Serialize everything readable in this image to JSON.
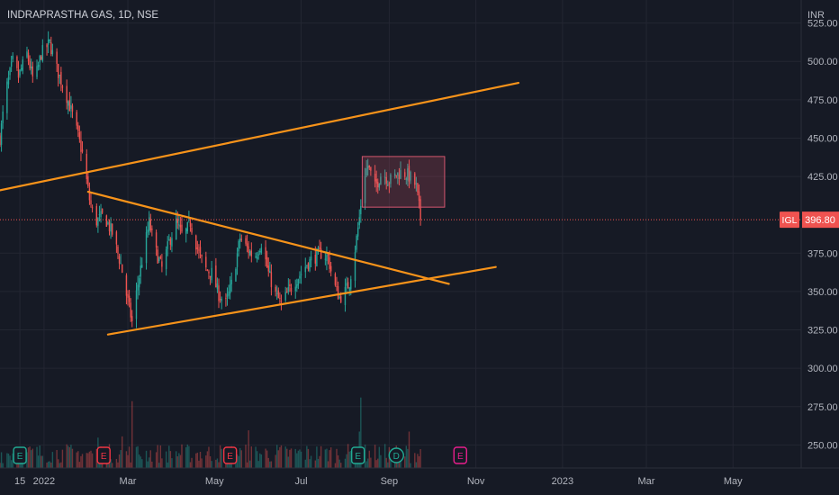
{
  "chart_data": {
    "type": "candlestick",
    "title": "INDRAPRASTHA GAS, 1D, NSE",
    "currency_label": "INR",
    "price_tag": {
      "symbol": "IGL",
      "price": "396.80",
      "value": 396.8
    },
    "colors": {
      "up": "#26a69a",
      "down": "#ef5350",
      "drawing": "#f7931a",
      "background": "#161a25",
      "grid": "#232632",
      "price_line": "#ef5350",
      "box_stroke": "#d4566e",
      "box_fill": "rgba(212,86,110,0.22)"
    },
    "y_axis": {
      "ylim": [
        235,
        540
      ],
      "ticks": [
        525,
        500,
        475,
        450,
        425,
        375,
        350,
        325,
        300,
        275,
        250
      ],
      "tick_labels": [
        "525.00",
        "500.00",
        "475.00",
        "450.00",
        "425.00",
        "375.00",
        "350.00",
        "325.00",
        "300.00",
        "275.00",
        "250.00"
      ]
    },
    "x_axis": {
      "start_date": "2021-12-01",
      "end_date": "2023-06-18",
      "ticks": [
        {
          "date": "2021-12-15",
          "label": "15"
        },
        {
          "date": "2022-01-01",
          "label": "2022"
        },
        {
          "date": "2022-03-01",
          "label": "Mar"
        },
        {
          "date": "2022-05-01",
          "label": "May"
        },
        {
          "date": "2022-07-01",
          "label": "Jul"
        },
        {
          "date": "2022-09-01",
          "label": "Sep"
        },
        {
          "date": "2022-11-01",
          "label": "Nov"
        },
        {
          "date": "2023-01-01",
          "label": "2023"
        },
        {
          "date": "2023-03-01",
          "label": "Mar"
        },
        {
          "date": "2023-05-01",
          "label": "May"
        }
      ]
    },
    "anchors": [
      [
        "2021-12-01",
        450
      ],
      [
        "2021-12-05",
        480
      ],
      [
        "2021-12-10",
        500
      ],
      [
        "2021-12-14",
        490
      ],
      [
        "2021-12-20",
        505
      ],
      [
        "2021-12-25",
        485
      ],
      [
        "2021-12-30",
        505
      ],
      [
        "2022-01-05",
        512
      ],
      [
        "2022-01-10",
        495
      ],
      [
        "2022-01-16",
        480
      ],
      [
        "2022-01-22",
        462
      ],
      [
        "2022-01-28",
        440
      ],
      [
        "2022-02-02",
        410
      ],
      [
        "2022-02-06",
        395
      ],
      [
        "2022-02-12",
        400
      ],
      [
        "2022-02-18",
        388
      ],
      [
        "2022-02-24",
        368
      ],
      [
        "2022-02-28",
        348
      ],
      [
        "2022-03-04",
        330
      ],
      [
        "2022-03-08",
        355
      ],
      [
        "2022-03-12",
        375
      ],
      [
        "2022-03-16",
        395
      ],
      [
        "2022-03-20",
        378
      ],
      [
        "2022-03-25",
        365
      ],
      [
        "2022-03-30",
        382
      ],
      [
        "2022-04-04",
        395
      ],
      [
        "2022-04-09",
        385
      ],
      [
        "2022-04-14",
        395
      ],
      [
        "2022-04-19",
        378
      ],
      [
        "2022-04-24",
        365
      ],
      [
        "2022-04-29",
        362
      ],
      [
        "2022-05-04",
        348
      ],
      [
        "2022-05-09",
        342
      ],
      [
        "2022-05-14",
        358
      ],
      [
        "2022-05-19",
        385
      ],
      [
        "2022-05-24",
        378
      ],
      [
        "2022-05-29",
        372
      ],
      [
        "2022-06-03",
        382
      ],
      [
        "2022-06-08",
        362
      ],
      [
        "2022-06-13",
        348
      ],
      [
        "2022-06-17",
        342
      ],
      [
        "2022-06-21",
        348
      ],
      [
        "2022-06-26",
        356
      ],
      [
        "2022-07-01",
        362
      ],
      [
        "2022-07-05",
        368
      ],
      [
        "2022-07-10",
        372
      ],
      [
        "2022-07-15",
        375
      ],
      [
        "2022-07-20",
        372
      ],
      [
        "2022-07-24",
        355
      ],
      [
        "2022-07-28",
        346
      ],
      [
        "2022-08-01",
        350
      ],
      [
        "2022-08-04",
        356
      ],
      [
        "2022-08-08",
        378
      ],
      [
        "2022-08-11",
        398
      ],
      [
        "2022-08-14",
        425
      ],
      [
        "2022-08-17",
        432
      ],
      [
        "2022-08-22",
        418
      ],
      [
        "2022-08-27",
        428
      ],
      [
        "2022-09-01",
        422
      ],
      [
        "2022-09-06",
        426
      ],
      [
        "2022-09-10",
        428
      ],
      [
        "2022-09-14",
        426
      ],
      [
        "2022-09-18",
        422
      ],
      [
        "2022-09-20",
        418
      ],
      [
        "2022-09-22",
        405
      ],
      [
        "2022-09-23",
        397
      ]
    ],
    "volume_spikes": [
      {
        "date": "2022-03-05",
        "value": 0.95
      },
      {
        "date": "2022-03-04",
        "value": 0.55
      },
      {
        "date": "2022-08-12",
        "value": 0.58
      },
      {
        "date": "2022-08-13",
        "value": 0.72
      },
      {
        "date": "2022-08-11",
        "value": 0.3
      },
      {
        "date": "2022-02-08",
        "value": 0.25
      },
      {
        "date": "2021-12-18",
        "value": 0.28
      },
      {
        "date": "2022-02-25",
        "value": 0.26
      },
      {
        "date": "2022-04-10",
        "value": 0.35
      },
      {
        "date": "2022-05-25",
        "value": 0.31
      },
      {
        "date": "2022-09-15",
        "value": 0.3
      }
    ],
    "event_markers": [
      {
        "date": "2021-12-15",
        "label": "E",
        "style": "teal"
      },
      {
        "date": "2022-02-12",
        "label": "E",
        "style": "red"
      },
      {
        "date": "2022-05-12",
        "label": "E",
        "style": "red"
      },
      {
        "date": "2022-08-10",
        "label": "E",
        "style": "teal"
      },
      {
        "date": "2022-09-06",
        "label": "D",
        "style": "teal"
      },
      {
        "date": "2022-10-21",
        "label": "E",
        "style": "magenta"
      }
    ],
    "trend_lines": [
      {
        "from": [
          "2021-12-01",
          416
        ],
        "to": [
          "2022-12-01",
          486
        ]
      },
      {
        "from": [
          "2022-02-01",
          415
        ],
        "to": [
          "2022-10-13",
          355
        ]
      },
      {
        "from": [
          "2022-02-15",
          322
        ],
        "to": [
          "2022-11-15",
          366
        ]
      }
    ],
    "box": {
      "from": [
        "2022-08-13",
        438
      ],
      "to": [
        "2022-10-10",
        405
      ]
    }
  }
}
